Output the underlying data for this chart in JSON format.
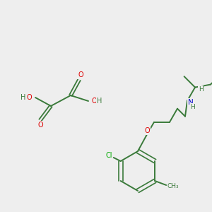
{
  "background_color": "#eeeeee",
  "bond_color": "#3a7a3a",
  "atom_colors": {
    "O": "#dd0000",
    "N": "#0000cc",
    "Cl": "#00aa00",
    "C": "#3a7a3a",
    "H": "#3a7a3a"
  },
  "fig_width": 3.0,
  "fig_height": 3.0,
  "dpi": 100
}
